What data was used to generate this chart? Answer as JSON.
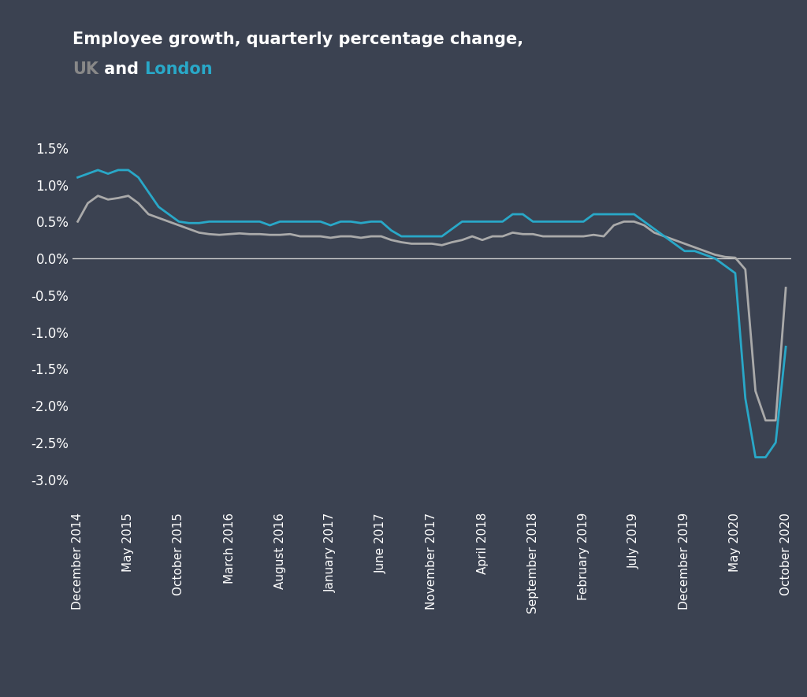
{
  "title_line1": "Employee growth, quarterly percentage change,",
  "title_line2_prefix": "UK",
  "title_line2_mid": " and ",
  "title_line2_suffix": "London",
  "background_color": "#3b4251",
  "uk_color": "#aaaaaa",
  "london_color": "#29a8c8",
  "zero_line_color": "#cccccc",
  "title_color": "#ffffff",
  "uk_label_color": "#888888",
  "london_label_color": "#29a8c8",
  "x_labels": [
    "December 2014",
    "May 2015",
    "October 2015",
    "March 2016",
    "August 2016",
    "January 2017",
    "June 2017",
    "November 2017",
    "April 2018",
    "September 2018",
    "February 2019",
    "July 2019",
    "December 2019",
    "May 2020",
    "October 2020"
  ],
  "uk": [
    0.005,
    0.0075,
    0.0085,
    0.008,
    0.0082,
    0.0085,
    0.0075,
    0.006,
    0.0055,
    0.005,
    0.0045,
    0.004,
    0.0035,
    0.0033,
    0.0032,
    0.0033,
    0.0034,
    0.0033,
    0.0033,
    0.0032,
    0.0032,
    0.0033,
    0.003,
    0.003,
    0.003,
    0.0028,
    0.003,
    0.003,
    0.0028,
    0.003,
    0.003,
    0.0025,
    0.0022,
    0.002,
    0.002,
    0.002,
    0.0018,
    0.0022,
    0.0025,
    0.003,
    0.0025,
    0.003,
    0.003,
    0.0035,
    0.0033,
    0.0033,
    0.003,
    0.003,
    0.003,
    0.003,
    0.003,
    0.0032,
    0.003,
    0.0045,
    0.005,
    0.005,
    0.0045,
    0.0035,
    0.003,
    0.0025,
    0.002,
    0.0015,
    0.001,
    0.0005,
    0.0002,
    0.0001,
    -0.0015,
    -0.018,
    -0.022,
    -0.022,
    -0.004
  ],
  "london": [
    0.011,
    0.0115,
    0.012,
    0.0115,
    0.012,
    0.012,
    0.011,
    0.009,
    0.007,
    0.006,
    0.005,
    0.0048,
    0.0048,
    0.005,
    0.005,
    0.005,
    0.005,
    0.005,
    0.005,
    0.0045,
    0.005,
    0.005,
    0.005,
    0.005,
    0.005,
    0.0045,
    0.005,
    0.005,
    0.0048,
    0.005,
    0.005,
    0.0038,
    0.003,
    0.003,
    0.003,
    0.003,
    0.003,
    0.004,
    0.005,
    0.005,
    0.005,
    0.005,
    0.005,
    0.006,
    0.006,
    0.005,
    0.005,
    0.005,
    0.005,
    0.005,
    0.005,
    0.006,
    0.006,
    0.006,
    0.006,
    0.006,
    0.005,
    0.004,
    0.003,
    0.002,
    0.001,
    0.001,
    0.0005,
    0.0,
    -0.001,
    -0.002,
    -0.019,
    -0.027,
    -0.027,
    -0.025,
    -0.012
  ],
  "tick_positions": [
    0,
    5,
    10,
    15,
    20,
    25,
    30,
    35,
    40,
    45,
    50,
    55,
    60,
    65,
    70
  ],
  "ytick_vals": [
    0.015,
    0.01,
    0.005,
    0.0,
    -0.005,
    -0.01,
    -0.015,
    -0.02,
    -0.025,
    -0.03
  ],
  "ytick_labels": [
    "1.5%",
    "1.0%",
    "0.5%",
    "0.0%",
    "-0.5%",
    "-1.0%",
    "-1.5%",
    "-2.0%",
    "-2.5%",
    "-3.0%"
  ],
  "ylim": [
    -0.034,
    0.019
  ],
  "xlim": [
    -0.5,
    70.5
  ]
}
